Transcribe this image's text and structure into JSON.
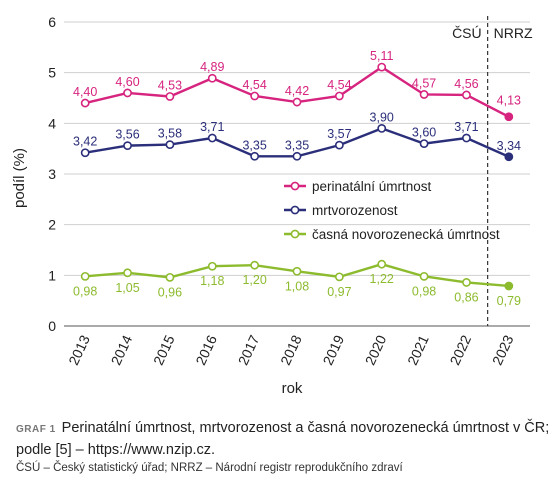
{
  "chart_data": {
    "type": "line",
    "categories": [
      "2013",
      "2014",
      "2015",
      "2016",
      "2017",
      "2018",
      "2019",
      "2020",
      "2021",
      "2022",
      "2023"
    ],
    "series": [
      {
        "name": "perinatální úmrtnost",
        "color": "#d6247f",
        "values": [
          4.4,
          4.6,
          4.53,
          4.89,
          4.54,
          4.42,
          4.54,
          5.11,
          4.57,
          4.56,
          4.13
        ],
        "labels": [
          "4,40",
          "4,60",
          "4,53",
          "4,89",
          "4,54",
          "4,42",
          "4,54",
          "5,11",
          "4,57",
          "4,56",
          "4,13"
        ]
      },
      {
        "name": "mrtvorozenost",
        "color": "#2b2f7a",
        "values": [
          3.42,
          3.56,
          3.58,
          3.71,
          3.35,
          3.35,
          3.57,
          3.9,
          3.6,
          3.71,
          3.34
        ],
        "labels": [
          "3,42",
          "3,56",
          "3,58",
          "3,71",
          "3,35",
          "3,35",
          "3,57",
          "3,90",
          "3,60",
          "3,71",
          "3,34"
        ]
      },
      {
        "name": "časná novorozenecká úmrtnost",
        "color": "#8dbb2e",
        "values": [
          0.98,
          1.05,
          0.96,
          1.18,
          1.2,
          1.08,
          0.97,
          1.22,
          0.98,
          0.86,
          0.79
        ],
        "labels": [
          "0,98",
          "1,05",
          "0,96",
          "1,18",
          "1,20",
          "1,08",
          "0,97",
          "1,22",
          "0,98",
          "0,86",
          "0,79"
        ]
      }
    ],
    "xlabel": "rok",
    "ylabel": "podíl (%)",
    "ylim": [
      0,
      6
    ],
    "yticks": [
      "0",
      "1",
      "2",
      "3",
      "4",
      "5",
      "6"
    ],
    "grid": "horizontal",
    "legend_position": "center-right",
    "source_split_left": "ČSÚ",
    "source_split_right": "NRRZ",
    "split_between": [
      "2022",
      "2023"
    ]
  },
  "caption": {
    "tag": "GRAF 1",
    "text": "Perinatální úmrtnost, mrtvorozenost a časná novorozenecká úmrtnost v ČR; podle [5] – https://www.nzip.cz.",
    "note": "ČSÚ – Český statistický úřad; NRRZ – Národní registr reprodukčního zdraví"
  }
}
